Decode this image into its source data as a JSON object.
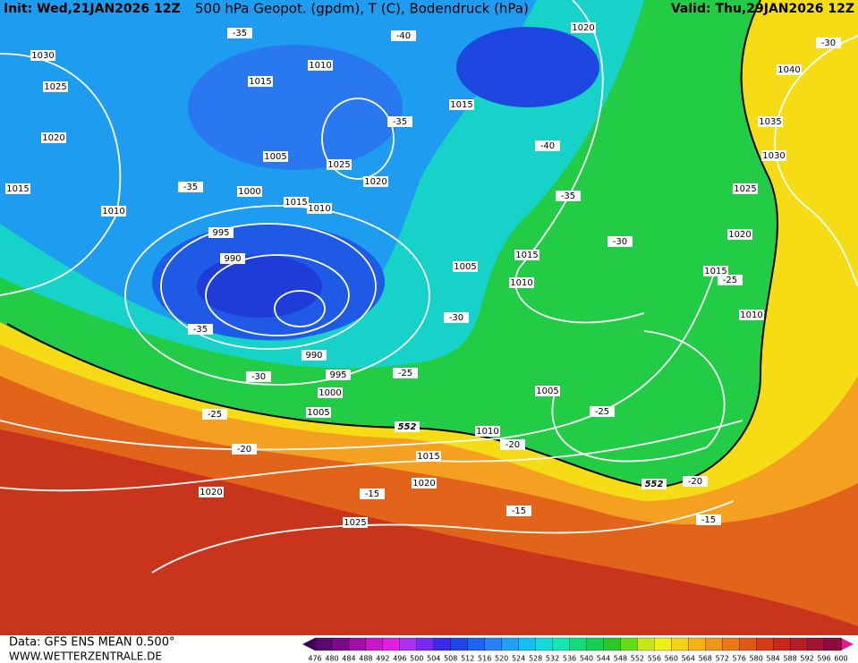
{
  "header": {
    "init": "Init: Wed,21JAN2026 12Z",
    "title": "500 hPa Geopot. (gpdm), T (C), Bodendruck (hPa)",
    "valid": "Valid: Thu,29JAN2026 12Z"
  },
  "footer": {
    "data": "Data: GFS ENS MEAN 0.500°",
    "site": "WWW.WETTERZENTRALE.DE"
  },
  "colorbar": {
    "levels": [
      476,
      480,
      484,
      488,
      492,
      496,
      500,
      504,
      508,
      512,
      516,
      520,
      524,
      528,
      532,
      536,
      540,
      544,
      548,
      552,
      556,
      560,
      564,
      568,
      572,
      576,
      580,
      584,
      588,
      592,
      596,
      600
    ]
  },
  "isobar_labels": [
    1030,
    1025,
    1020,
    1015,
    1010,
    1010,
    1015,
    1005,
    1000,
    1025,
    1020,
    1015,
    1010,
    995,
    990,
    990,
    995,
    1000,
    1005,
    1005,
    1015,
    1010,
    1015,
    1020,
    1040,
    1035,
    1030,
    1025,
    1020,
    1015,
    1010,
    1005,
    1010,
    1015,
    1020,
    1020,
    1025
  ],
  "isotherm_labels": [
    -35,
    -40,
    -35,
    -40,
    -35,
    -35,
    -30,
    -25,
    -30,
    -35,
    -30,
    -25,
    -25,
    -25,
    -20,
    -20,
    -15,
    -15,
    -20,
    -15,
    -30
  ],
  "geopotential_labels": [
    552,
    552
  ]
}
